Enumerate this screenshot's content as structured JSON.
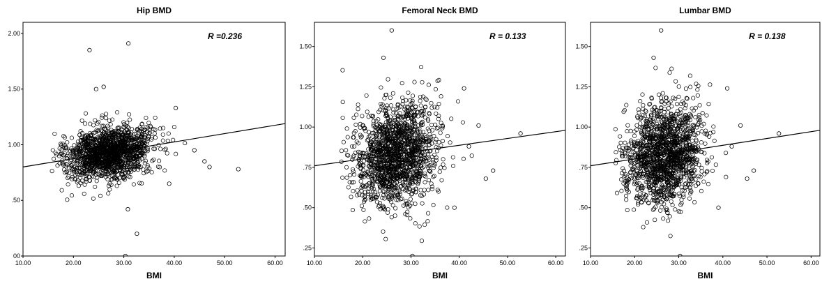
{
  "chart_data": [
    {
      "type": "scatter",
      "title": "Hip BMD",
      "xlabel": "BMI",
      "ylabel": "",
      "annotation": "R =0.236",
      "xlim": [
        10,
        62
      ],
      "ylim": [
        0,
        2.1
      ],
      "xticks": [
        "10.00",
        "20.00",
        "30.00",
        "40.00",
        "50.00",
        "60.00"
      ],
      "yticks": [
        "00",
        ".50",
        "1.00",
        "1.50",
        "2.00"
      ],
      "ytick_values": [
        0,
        0.5,
        1.0,
        1.5,
        2.0
      ],
      "fit_line": {
        "x": [
          10,
          62
        ],
        "y": [
          0.8,
          1.19
        ]
      },
      "outliers": [
        [
          23.2,
          1.85
        ],
        [
          30.9,
          1.91
        ],
        [
          30.3,
          0.0
        ],
        [
          30.8,
          0.42
        ],
        [
          32.6,
          0.2
        ],
        [
          52.7,
          0.78
        ],
        [
          47.0,
          0.8
        ],
        [
          46.0,
          0.85
        ],
        [
          44.0,
          0.95
        ],
        [
          40.3,
          1.33
        ],
        [
          24.5,
          1.5
        ],
        [
          26.0,
          1.52
        ],
        [
          39.0,
          0.65
        ]
      ],
      "cloud": {
        "x_mean": 27,
        "x_sd": 4.2,
        "y_mean": 0.93,
        "y_sd": 0.12,
        "r": 0.236
      }
    },
    {
      "type": "scatter",
      "title": "Femoral Neck BMD",
      "xlabel": "BMI",
      "ylabel": "",
      "annotation": "R = 0.133",
      "xlim": [
        10,
        62
      ],
      "ylim": [
        0.2,
        1.65
      ],
      "xticks": [
        "10.00",
        "20.00",
        "30.00",
        "40.00",
        "50.00",
        "60.00"
      ],
      "yticks": [
        ".25",
        ".50",
        ".75",
        "1.00",
        "1.25",
        "1.50"
      ],
      "ytick_values": [
        0.25,
        0.5,
        0.75,
        1.0,
        1.25,
        1.5
      ],
      "fit_line": {
        "x": [
          10,
          62
        ],
        "y": [
          0.76,
          0.98
        ]
      },
      "outliers": [
        [
          26.0,
          1.6
        ],
        [
          24.3,
          1.43
        ],
        [
          30.3,
          0.2
        ],
        [
          52.7,
          0.96
        ],
        [
          47.0,
          0.73
        ],
        [
          45.5,
          0.68
        ],
        [
          41.0,
          1.24
        ],
        [
          44.0,
          1.01
        ],
        [
          39.0,
          0.5
        ],
        [
          42.0,
          0.88
        ]
      ],
      "cloud": {
        "x_mean": 27,
        "x_sd": 4.2,
        "y_mean": 0.83,
        "y_sd": 0.16,
        "r": 0.133
      }
    },
    {
      "type": "scatter",
      "title": "Lumbar BMD",
      "xlabel": "BMI",
      "ylabel": "",
      "annotation": "R = 0.138",
      "xlim": [
        10,
        62
      ],
      "ylim": [
        0.2,
        1.65
      ],
      "xticks": [
        "10.00",
        "20.00",
        "30.00",
        "40.00",
        "50.00",
        "60.00"
      ],
      "yticks": [
        ".25",
        ".50",
        ".75",
        "1.00",
        "1.25",
        "1.50"
      ],
      "ytick_values": [
        0.25,
        0.5,
        0.75,
        1.0,
        1.25,
        1.5
      ],
      "fit_line": {
        "x": [
          10,
          62
        ],
        "y": [
          0.76,
          0.98
        ]
      },
      "outliers": [
        [
          26.0,
          1.6
        ],
        [
          24.3,
          1.43
        ],
        [
          30.3,
          0.2
        ],
        [
          52.7,
          0.96
        ],
        [
          47.0,
          0.73
        ],
        [
          45.5,
          0.68
        ],
        [
          41.0,
          1.24
        ],
        [
          44.0,
          1.01
        ],
        [
          39.0,
          0.5
        ],
        [
          42.0,
          0.88
        ]
      ],
      "cloud": {
        "x_mean": 27,
        "x_sd": 4.2,
        "y_mean": 0.83,
        "y_sd": 0.16,
        "r": 0.138
      }
    }
  ]
}
